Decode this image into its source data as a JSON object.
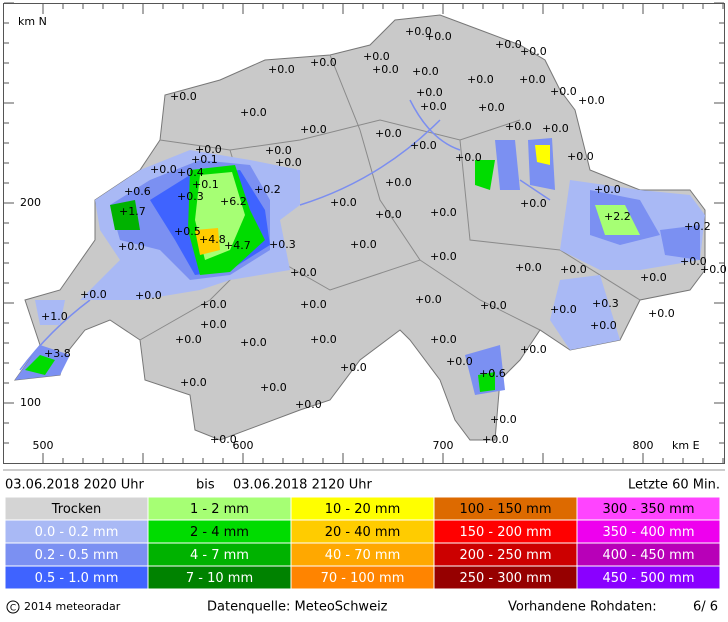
{
  "map": {
    "north_label": "km N",
    "east_label": "km E",
    "y_labels": [
      "200",
      "100"
    ],
    "x_labels": [
      "500",
      "600",
      "700",
      "800"
    ],
    "readings": [
      "+0.0",
      "+0.0",
      "+0.0",
      "+0.0",
      "+0.0",
      "+0.0",
      "+0.0",
      "+0.0",
      "+0.0",
      "+0.0",
      "+0.0",
      "+0.0",
      "+0.0",
      "+0.0",
      "+0.0",
      "+0.0",
      "+0.0",
      "+0.0",
      "+0.0",
      "+0.0",
      "+0.0",
      "+0.0",
      "+0.0",
      "+0.0",
      "+0.0",
      "+0.0",
      "+0.0",
      "+0.0",
      "+0.0",
      "+0.0",
      "+0.0",
      "+0.0",
      "+0.0",
      "+0.0",
      "+0.0",
      "+0.0",
      "+0.0",
      "+0.0",
      "+0.0",
      "+0.0",
      "+0.0",
      "+0.0",
      "+0.0",
      "+0.0",
      "+0.0",
      "+0.0",
      "+0.0",
      "+0.0",
      "+0.0",
      "+0.0",
      "+0.0",
      "+0.0",
      "+0.0",
      "+0.0",
      "+0.0",
      "+0.0",
      "+0.0",
      "+0.0",
      "+0.0",
      "+0.0",
      "+0.0",
      "+0.0",
      "+0.0",
      "+0.0",
      "+0.0",
      "+0.6",
      "+0.4",
      "+0.1",
      "+0.1",
      "+0.3",
      "+1.7",
      "+0.5",
      "+6.2",
      "+4.8",
      "+4.7",
      "+0.3",
      "+0.2",
      "+1.0",
      "+3.8",
      "+2.2",
      "+0.2",
      "+0.6",
      "+0.3",
      "+0.0",
      "+0.0"
    ]
  },
  "period": {
    "from": "03.06.2018 2020 Uhr",
    "sep": "bis",
    "to": "03.06.2018 2120 Uhr",
    "window": "Letzte 60 Min."
  },
  "legend": {
    "columns": [
      [
        {
          "label": "Trocken",
          "color": "#d4d4d4",
          "text_color": "#000"
        },
        {
          "label": "0.0 - 0.2 mm",
          "color": "#a9b9f5",
          "text_color": "#fff"
        },
        {
          "label": "0.2 - 0.5 mm",
          "color": "#7b90f2",
          "text_color": "#fff"
        },
        {
          "label": "0.5 - 1.0 mm",
          "color": "#3f63ff",
          "text_color": "#fff"
        }
      ],
      [
        {
          "label": "1 - 2 mm",
          "color": "#a6ff74",
          "text_color": "#000"
        },
        {
          "label": "2 - 4 mm",
          "color": "#00dc00",
          "text_color": "#000"
        },
        {
          "label": "4 - 7 mm",
          "color": "#00b200",
          "text_color": "#fff"
        },
        {
          "label": "7 - 10 mm",
          "color": "#008200",
          "text_color": "#fff"
        }
      ],
      [
        {
          "label": "10 - 20 mm",
          "color": "#ffff00",
          "text_color": "#000"
        },
        {
          "label": "20 - 40 mm",
          "color": "#ffcc00",
          "text_color": "#000"
        },
        {
          "label": "40 - 70 mm",
          "color": "#ffa800",
          "text_color": "#fff"
        },
        {
          "label": "70 - 100 mm",
          "color": "#ff8400",
          "text_color": "#fff"
        }
      ],
      [
        {
          "label": "100 - 150 mm",
          "color": "#dd6a00",
          "text_color": "#000"
        },
        {
          "label": "150 - 200 mm",
          "color": "#ff0000",
          "text_color": "#fff"
        },
        {
          "label": "200 - 250 mm",
          "color": "#cc0000",
          "text_color": "#fff"
        },
        {
          "label": "250 - 300 mm",
          "color": "#960000",
          "text_color": "#fff"
        }
      ],
      [
        {
          "label": "300 - 350 mm",
          "color": "#ff44ff",
          "text_color": "#000"
        },
        {
          "label": "350 - 400 mm",
          "color": "#ee00ee",
          "text_color": "#fff"
        },
        {
          "label": "400 - 450 mm",
          "color": "#b800b8",
          "text_color": "#fff"
        },
        {
          "label": "450 - 500 mm",
          "color": "#8a00ff",
          "text_color": "#fff"
        }
      ]
    ]
  },
  "footer": {
    "copyright": "2014 meteoradar",
    "source": "Datenquelle: MeteoSchweiz",
    "raw_label": "Vorhandene Rohdaten:",
    "raw_value": "6/ 6"
  }
}
